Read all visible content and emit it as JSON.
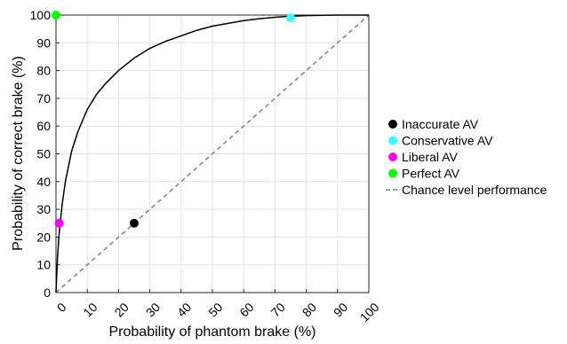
{
  "chart_data": {
    "type": "line",
    "title": "",
    "xlabel": "Probability of phantom brake (%)",
    "ylabel": "Probability of correct brake (%)",
    "xlim": [
      0,
      100
    ],
    "ylim": [
      0,
      100
    ],
    "x_ticks": [
      0,
      10,
      20,
      30,
      40,
      50,
      60,
      70,
      80,
      90,
      100
    ],
    "y_ticks": [
      0,
      10,
      20,
      30,
      40,
      50,
      60,
      70,
      80,
      90,
      100
    ],
    "grid": true,
    "legend_position": "right",
    "curve": {
      "x": [
        0,
        0.5,
        1,
        2,
        3,
        5,
        7,
        10,
        13,
        16,
        20,
        25,
        30,
        35,
        40,
        45,
        50,
        55,
        60,
        65,
        70,
        75,
        80,
        85,
        90,
        95,
        100
      ],
      "y": [
        0,
        13,
        21,
        32,
        40,
        51,
        58,
        66,
        71.5,
        75.5,
        80,
        84.5,
        88,
        90.5,
        92.5,
        94.5,
        96,
        97,
        98,
        98.7,
        99.2,
        99.6,
        99.8,
        99.9,
        100,
        100,
        100
      ],
      "color": "#000000"
    },
    "series": [
      {
        "name": "Inaccurate AV",
        "x": 25,
        "y": 25,
        "color": "#000000"
      },
      {
        "name": "Conservative AV",
        "x": 75,
        "y": 99,
        "color": "#33ffff"
      },
      {
        "name": "Liberal AV",
        "x": 1,
        "y": 25,
        "color": "#ff00ff"
      },
      {
        "name": "Perfect AV",
        "x": 0,
        "y": 100,
        "color": "#00ff00"
      }
    ],
    "reference_line": {
      "name": "Chance level performance",
      "x": [
        0,
        100
      ],
      "y": [
        0,
        100
      ],
      "color": "#808080",
      "style": "dashed"
    }
  }
}
